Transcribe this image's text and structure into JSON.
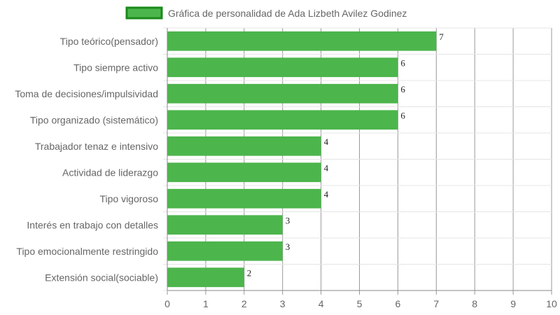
{
  "chart_data": {
    "type": "bar",
    "orientation": "horizontal",
    "categories": [
      "Tipo teórico(pensador)",
      "Tipo siempre activo",
      "Toma de decisiones/impulsividad",
      "Tipo organizado (sistemático)",
      "Trabajador tenaz e intensivo",
      "Actividad de liderazgo",
      "Tipo vigoroso",
      "Interés en trabajo con detalles",
      "Tipo emocionalmente restringido",
      "Extensión social(sociable)"
    ],
    "series": [
      {
        "name": "Gráfica de personalidad de Ada Lizbeth Avilez Godinez",
        "values": [
          7,
          6,
          6,
          6,
          4,
          4,
          4,
          3,
          3,
          2
        ],
        "color": "#4cb54c",
        "border_color": "#1a8a1a"
      }
    ],
    "xlim": [
      0,
      10
    ],
    "x_ticks": [
      "0",
      "1",
      "2",
      "3",
      "4",
      "5",
      "6",
      "7",
      "8",
      "9",
      "10"
    ],
    "data_labels": [
      "7",
      "6",
      "6",
      "6",
      "4",
      "4",
      "4",
      "3",
      "3",
      "2"
    ],
    "grid": true,
    "legend_position": "top"
  }
}
